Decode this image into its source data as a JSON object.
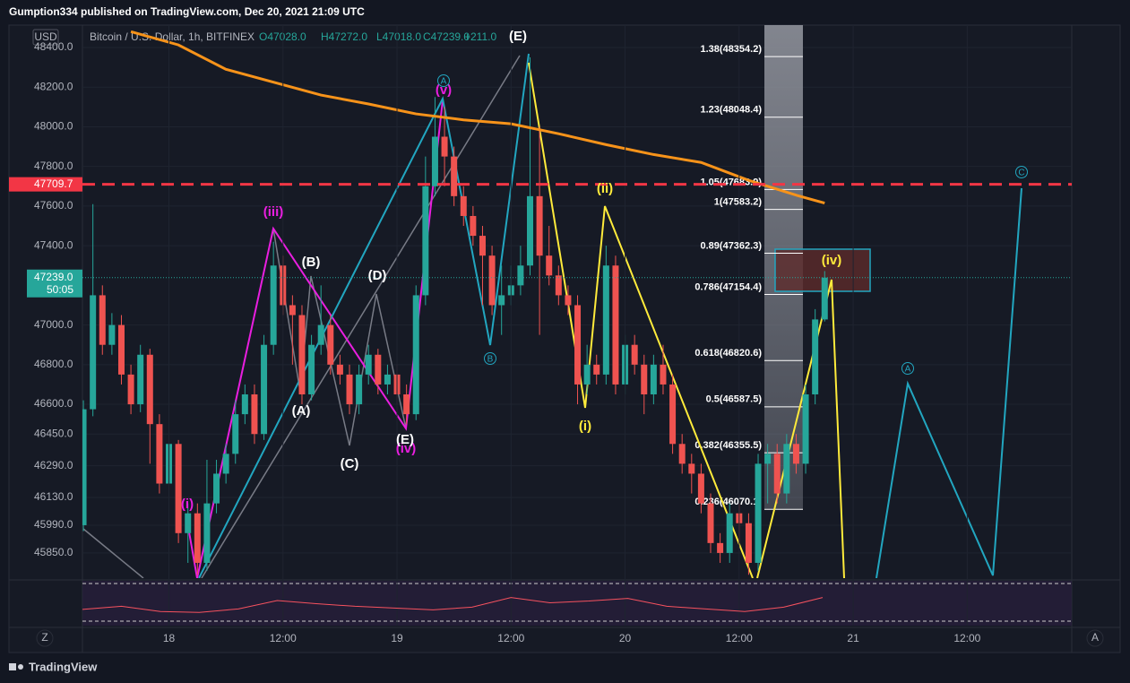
{
  "header": "Gumption334 published on TradingView.com, Dec 20, 2021 21:09 UTC",
  "footer": "TradingView",
  "chart_data": {
    "type": "candlestick",
    "legend": {
      "currency": "USD",
      "symbol": "Bitcoin / U.S. Dollar, 1h, BITFINEX",
      "open": "O47028.0",
      "high": "H47272.0",
      "low": "L47018.0",
      "close": "C47239.0",
      "change": "+211.0"
    },
    "ylim": [
      45723,
      48513
    ],
    "yticks": [
      {
        "value": 48400,
        "label": "48400.0"
      },
      {
        "value": 48200,
        "label": "48200.0"
      },
      {
        "value": 48000,
        "label": "48000.0"
      },
      {
        "value": 47800,
        "label": "47800.0"
      },
      {
        "value": 47600,
        "label": "47600.0"
      },
      {
        "value": 47400,
        "label": "47400.0"
      },
      {
        "value": 47000,
        "label": "47000.0"
      },
      {
        "value": 46800,
        "label": "46800.0"
      },
      {
        "value": 46600,
        "label": "46600.0"
      },
      {
        "value": 46450,
        "label": "46450.0"
      },
      {
        "value": 46290,
        "label": "46290.0"
      },
      {
        "value": 46130,
        "label": "46130.0"
      },
      {
        "value": 45990,
        "label": "45990.0"
      },
      {
        "value": 45850,
        "label": "45850.0"
      }
    ],
    "xlim": [
      -0.1,
      104
    ],
    "xticks": [
      {
        "value": 9,
        "label": "18"
      },
      {
        "value": 21,
        "label": "12:00"
      },
      {
        "value": 33,
        "label": "19"
      },
      {
        "value": 45,
        "label": "12:00"
      },
      {
        "value": 57,
        "label": "20"
      },
      {
        "value": 69,
        "label": "12:00"
      },
      {
        "value": 81,
        "label": "21"
      },
      {
        "value": 93,
        "label": "12:00"
      }
    ],
    "axis_buttons": [
      "Z",
      "A"
    ],
    "up_color": "#26a69a",
    "down_color": "#ef5350",
    "ohlc": [
      [
        45990,
        46620,
        45960,
        46575
      ],
      [
        46575,
        47610,
        46540,
        47150
      ],
      [
        47150,
        47200,
        46850,
        46900
      ],
      [
        46900,
        47060,
        46850,
        47000
      ],
      [
        47000,
        47050,
        46700,
        46750
      ],
      [
        46750,
        46800,
        46550,
        46600
      ],
      [
        46600,
        46900,
        46560,
        46850
      ],
      [
        46850,
        46880,
        46300,
        46500
      ],
      [
        46500,
        46550,
        46150,
        46200
      ],
      [
        46200,
        46450,
        46100,
        46400
      ],
      [
        46400,
        46420,
        45900,
        45950
      ],
      [
        45950,
        46100,
        45800,
        46050
      ],
      [
        46050,
        46100,
        45740,
        45800
      ],
      [
        45800,
        46320,
        45760,
        46100
      ],
      [
        46100,
        46320,
        46050,
        46250
      ],
      [
        46250,
        46400,
        46200,
        46350
      ],
      [
        46350,
        46620,
        46300,
        46550
      ],
      [
        46550,
        46700,
        46500,
        46650
      ],
      [
        46650,
        46700,
        46400,
        46450
      ],
      [
        46450,
        46950,
        46420,
        46900
      ],
      [
        46900,
        47420,
        46850,
        47300
      ],
      [
        47300,
        47350,
        47050,
        47100
      ],
      [
        47100,
        47150,
        46800,
        47050
      ],
      [
        47050,
        47100,
        46600,
        46650
      ],
      [
        46650,
        46950,
        46620,
        46900
      ],
      [
        46900,
        47200,
        46850,
        47000
      ],
      [
        47000,
        47050,
        46750,
        46800
      ],
      [
        46800,
        46850,
        46700,
        46750
      ],
      [
        46750,
        46800,
        46550,
        46600
      ],
      [
        46600,
        46800,
        46550,
        46750
      ],
      [
        46750,
        46900,
        46700,
        46850
      ],
      [
        46850,
        46880,
        46650,
        46700
      ],
      [
        46700,
        46800,
        46650,
        46750
      ],
      [
        46750,
        46800,
        46600,
        46650
      ],
      [
        46650,
        46700,
        46500,
        46550
      ],
      [
        46550,
        47200,
        46520,
        47150
      ],
      [
        47150,
        47850,
        47100,
        47700
      ],
      [
        47700,
        48150,
        47650,
        47950
      ],
      [
        47950,
        48100,
        47700,
        47850
      ],
      [
        47850,
        47900,
        47600,
        47650
      ],
      [
        47650,
        47700,
        47500,
        47550
      ],
      [
        47550,
        47600,
        47400,
        47450
      ],
      [
        47450,
        47500,
        47100,
        47350
      ],
      [
        47350,
        47400,
        47050,
        47100
      ],
      [
        47100,
        47300,
        46950,
        47150
      ],
      [
        47150,
        47300,
        47100,
        47200
      ],
      [
        47200,
        47400,
        47150,
        47300
      ],
      [
        47300,
        48350,
        47250,
        47650
      ],
      [
        47650,
        48000,
        46950,
        47350
      ],
      [
        47350,
        47500,
        47200,
        47250
      ],
      [
        47250,
        47300,
        47100,
        47150
      ],
      [
        47150,
        47200,
        47050,
        47100
      ],
      [
        47100,
        47150,
        46600,
        46700
      ],
      [
        46700,
        46900,
        46650,
        46800
      ],
      [
        46800,
        46850,
        46700,
        46750
      ],
      [
        46750,
        47400,
        46700,
        47300
      ],
      [
        47300,
        47350,
        46650,
        46700
      ],
      [
        46700,
        46950,
        46650,
        46900
      ],
      [
        46900,
        46950,
        46750,
        46800
      ],
      [
        46800,
        46850,
        46550,
        46650
      ],
      [
        46650,
        46850,
        46600,
        46800
      ],
      [
        46800,
        46900,
        46650,
        46700
      ],
      [
        46700,
        46750,
        46350,
        46400
      ],
      [
        46400,
        46450,
        46250,
        46300
      ],
      [
        46300,
        46350,
        46150,
        46250
      ],
      [
        46250,
        46300,
        46050,
        46100
      ],
      [
        46100,
        46150,
        45850,
        45900
      ],
      [
        45900,
        45950,
        45800,
        45850
      ],
      [
        45850,
        46100,
        45800,
        46050
      ],
      [
        46050,
        46100,
        45900,
        46000
      ],
      [
        46000,
        46050,
        45740,
        45800
      ],
      [
        45800,
        46350,
        45760,
        46300
      ],
      [
        46300,
        46400,
        46100,
        46350
      ],
      [
        46350,
        46400,
        46100,
        46150
      ],
      [
        46150,
        46450,
        46100,
        46400
      ],
      [
        46400,
        46450,
        46250,
        46300
      ],
      [
        46300,
        46700,
        46250,
        46650
      ],
      [
        46650,
        47080,
        46600,
        47028
      ],
      [
        47028,
        47272,
        47018,
        47239
      ]
    ],
    "ma": {
      "color": "#f7931a",
      "x": [
        5,
        10,
        15,
        20,
        25,
        30,
        35,
        40,
        45,
        50,
        55,
        60,
        65,
        70,
        75,
        78
      ],
      "values": [
        48480,
        48413,
        48290,
        48225,
        48160,
        48115,
        48065,
        48035,
        48015,
        47965,
        47910,
        47860,
        47820,
        47730,
        47655,
        47615
      ]
    },
    "oscillator": {
      "color": "#f7525f",
      "values": [
        35,
        42,
        30,
        28,
        36,
        55,
        48,
        42,
        38,
        34,
        40,
        62,
        50,
        54,
        60,
        42,
        36,
        30,
        40,
        62
      ]
    },
    "alert_line": {
      "value": 47709.7,
      "label": "47709.7",
      "color": "#f23645"
    },
    "last_price": {
      "value": 47239,
      "label": "47239.0",
      "countdown": "50:05"
    },
    "fib_levels": [
      {
        "label": "1.38(48354.2)",
        "value": 48354.2
      },
      {
        "label": "1.23(48048.4)",
        "value": 48048.4
      },
      {
        "label": "1.05(47683.9)",
        "value": 47683.9
      },
      {
        "label": "1(47583.2)",
        "value": 47583.2
      },
      {
        "label": "0.89(47362.3)",
        "value": 47362.3
      },
      {
        "label": "0.786(47154.4)",
        "value": 47154.4
      },
      {
        "label": "0.618(46820.6)",
        "value": 46820.6
      },
      {
        "label": "0.5(46587.5)",
        "value": 46587.5
      },
      {
        "label": "0.382(46355.5)",
        "value": 46355.5
      },
      {
        "label": "0.236(46070.1)",
        "value": 46070.1
      }
    ],
    "annotations": [
      {
        "text": "(i)"
      },
      {
        "text": "(iii)"
      },
      {
        "text": "(iv)"
      },
      {
        "text": "(v)"
      },
      {
        "text": "(A)"
      },
      {
        "text": "(B)"
      },
      {
        "text": "(C)"
      },
      {
        "text": "(D)"
      },
      {
        "text": "(E)"
      },
      {
        "text": "(E)"
      },
      {
        "text": "(i)"
      },
      {
        "text": "(ii)"
      },
      {
        "text": "(iv)"
      },
      {
        "text": "A"
      },
      {
        "text": "B"
      },
      {
        "text": "A"
      },
      {
        "text": "C"
      }
    ]
  }
}
